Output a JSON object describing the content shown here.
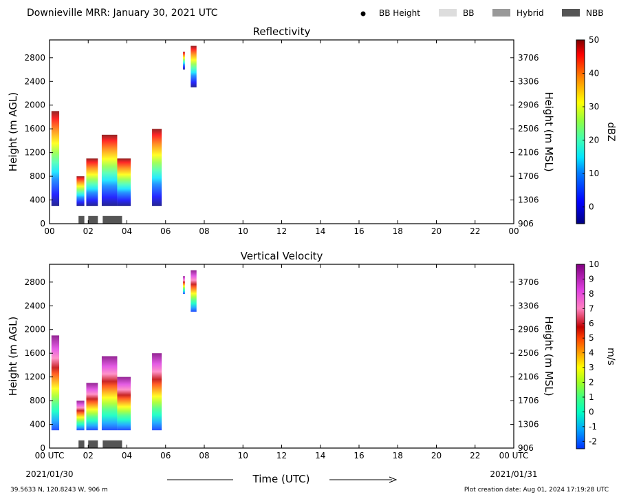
{
  "header": {
    "title": "Downieville MRR:  January 30, 2021 UTC",
    "legend": [
      {
        "label": "BB Height",
        "marker": "dot",
        "color": "#000000"
      },
      {
        "label": "BB",
        "marker": "box",
        "color": "#dddddd"
      },
      {
        "label": "Hybrid",
        "marker": "box",
        "color": "#999999"
      },
      {
        "label": "NBB",
        "marker": "box",
        "color": "#555555"
      }
    ]
  },
  "footer": {
    "location": "39.5633 N, 120.8243 W, 906 m",
    "creation": "Plot creation date: Aug 01, 2024 17:19:28 UTC",
    "xlabel": "Time (UTC)",
    "start_date": "2021/01/30",
    "end_date": "2021/01/31"
  },
  "chart_data": [
    {
      "type": "heatmap",
      "title": "Reflectivity",
      "ylabel": "Height (m AGL)",
      "y2label": "Height (m MSL)",
      "xlim": [
        0,
        24
      ],
      "ylim": [
        0,
        3100
      ],
      "x_ticks": [
        "00",
        "02",
        "04",
        "06",
        "08",
        "10",
        "12",
        "14",
        "16",
        "18",
        "20",
        "22",
        "00"
      ],
      "y_ticks": [
        "0",
        "400",
        "800",
        "1200",
        "1600",
        "2000",
        "2400",
        "2800"
      ],
      "y2_ticks": [
        "906",
        "1306",
        "1706",
        "2106",
        "2506",
        "2906",
        "3306",
        "3706"
      ],
      "colorbar": {
        "label": "dBZ",
        "range": [
          -5,
          50
        ],
        "ticks": [
          "0",
          "10",
          "20",
          "30",
          "40",
          "50"
        ]
      },
      "echo_columns": [
        {
          "start": 0.1,
          "end": 0.5,
          "bottom": 300,
          "top": 1900
        },
        {
          "start": 1.4,
          "end": 1.8,
          "bottom": 300,
          "top": 800
        },
        {
          "start": 1.9,
          "end": 2.5,
          "bottom": 300,
          "top": 1100
        },
        {
          "start": 2.7,
          "end": 3.5,
          "bottom": 300,
          "top": 1500
        },
        {
          "start": 3.5,
          "end": 4.2,
          "bottom": 300,
          "top": 1100
        },
        {
          "start": 5.3,
          "end": 5.8,
          "bottom": 300,
          "top": 1600
        },
        {
          "start": 6.9,
          "end": 7.0,
          "bottom": 2600,
          "top": 2900
        },
        {
          "start": 7.3,
          "end": 7.6,
          "bottom": 2300,
          "top": 3000
        }
      ],
      "bright_band": [
        {
          "start": 1.5,
          "end": 1.8,
          "kind": "NBB"
        },
        {
          "start": 2.0,
          "end": 2.5,
          "kind": "NBB"
        },
        {
          "start": 2.75,
          "end": 3.75,
          "kind": "NBB"
        }
      ]
    },
    {
      "type": "heatmap",
      "title": "Vertical Velocity",
      "ylabel": "Height (m AGL)",
      "y2label": "Height (m MSL)",
      "xlim": [
        0,
        24
      ],
      "ylim": [
        0,
        3100
      ],
      "x_ticks": [
        "00 UTC",
        "02",
        "04",
        "06",
        "08",
        "10",
        "12",
        "14",
        "16",
        "18",
        "20",
        "22",
        "00 UTC"
      ],
      "y_ticks": [
        "0",
        "400",
        "800",
        "1200",
        "1600",
        "2000",
        "2400",
        "2800"
      ],
      "y2_ticks": [
        "906",
        "1306",
        "1706",
        "2106",
        "2506",
        "2906",
        "3306",
        "3706"
      ],
      "colorbar": {
        "label": "m/s",
        "range": [
          -2.5,
          10
        ],
        "ticks": [
          "-2",
          "-1",
          "0",
          "1",
          "2",
          "3",
          "4",
          "5",
          "6",
          "7",
          "8",
          "9",
          "10"
        ]
      },
      "echo_columns": [
        {
          "start": 0.1,
          "end": 0.5,
          "bottom": 300,
          "top": 1900
        },
        {
          "start": 1.4,
          "end": 1.8,
          "bottom": 300,
          "top": 800
        },
        {
          "start": 1.9,
          "end": 2.5,
          "bottom": 300,
          "top": 1100
        },
        {
          "start": 2.7,
          "end": 3.5,
          "bottom": 300,
          "top": 1550
        },
        {
          "start": 3.5,
          "end": 4.2,
          "bottom": 300,
          "top": 1200
        },
        {
          "start": 5.3,
          "end": 5.8,
          "bottom": 300,
          "top": 1600
        },
        {
          "start": 6.9,
          "end": 7.0,
          "bottom": 2600,
          "top": 2900
        },
        {
          "start": 7.3,
          "end": 7.6,
          "bottom": 2300,
          "top": 3000
        }
      ],
      "bright_band": [
        {
          "start": 1.5,
          "end": 1.8,
          "kind": "NBB"
        },
        {
          "start": 2.0,
          "end": 2.5,
          "kind": "NBB"
        },
        {
          "start": 2.75,
          "end": 3.75,
          "kind": "NBB"
        }
      ]
    }
  ]
}
